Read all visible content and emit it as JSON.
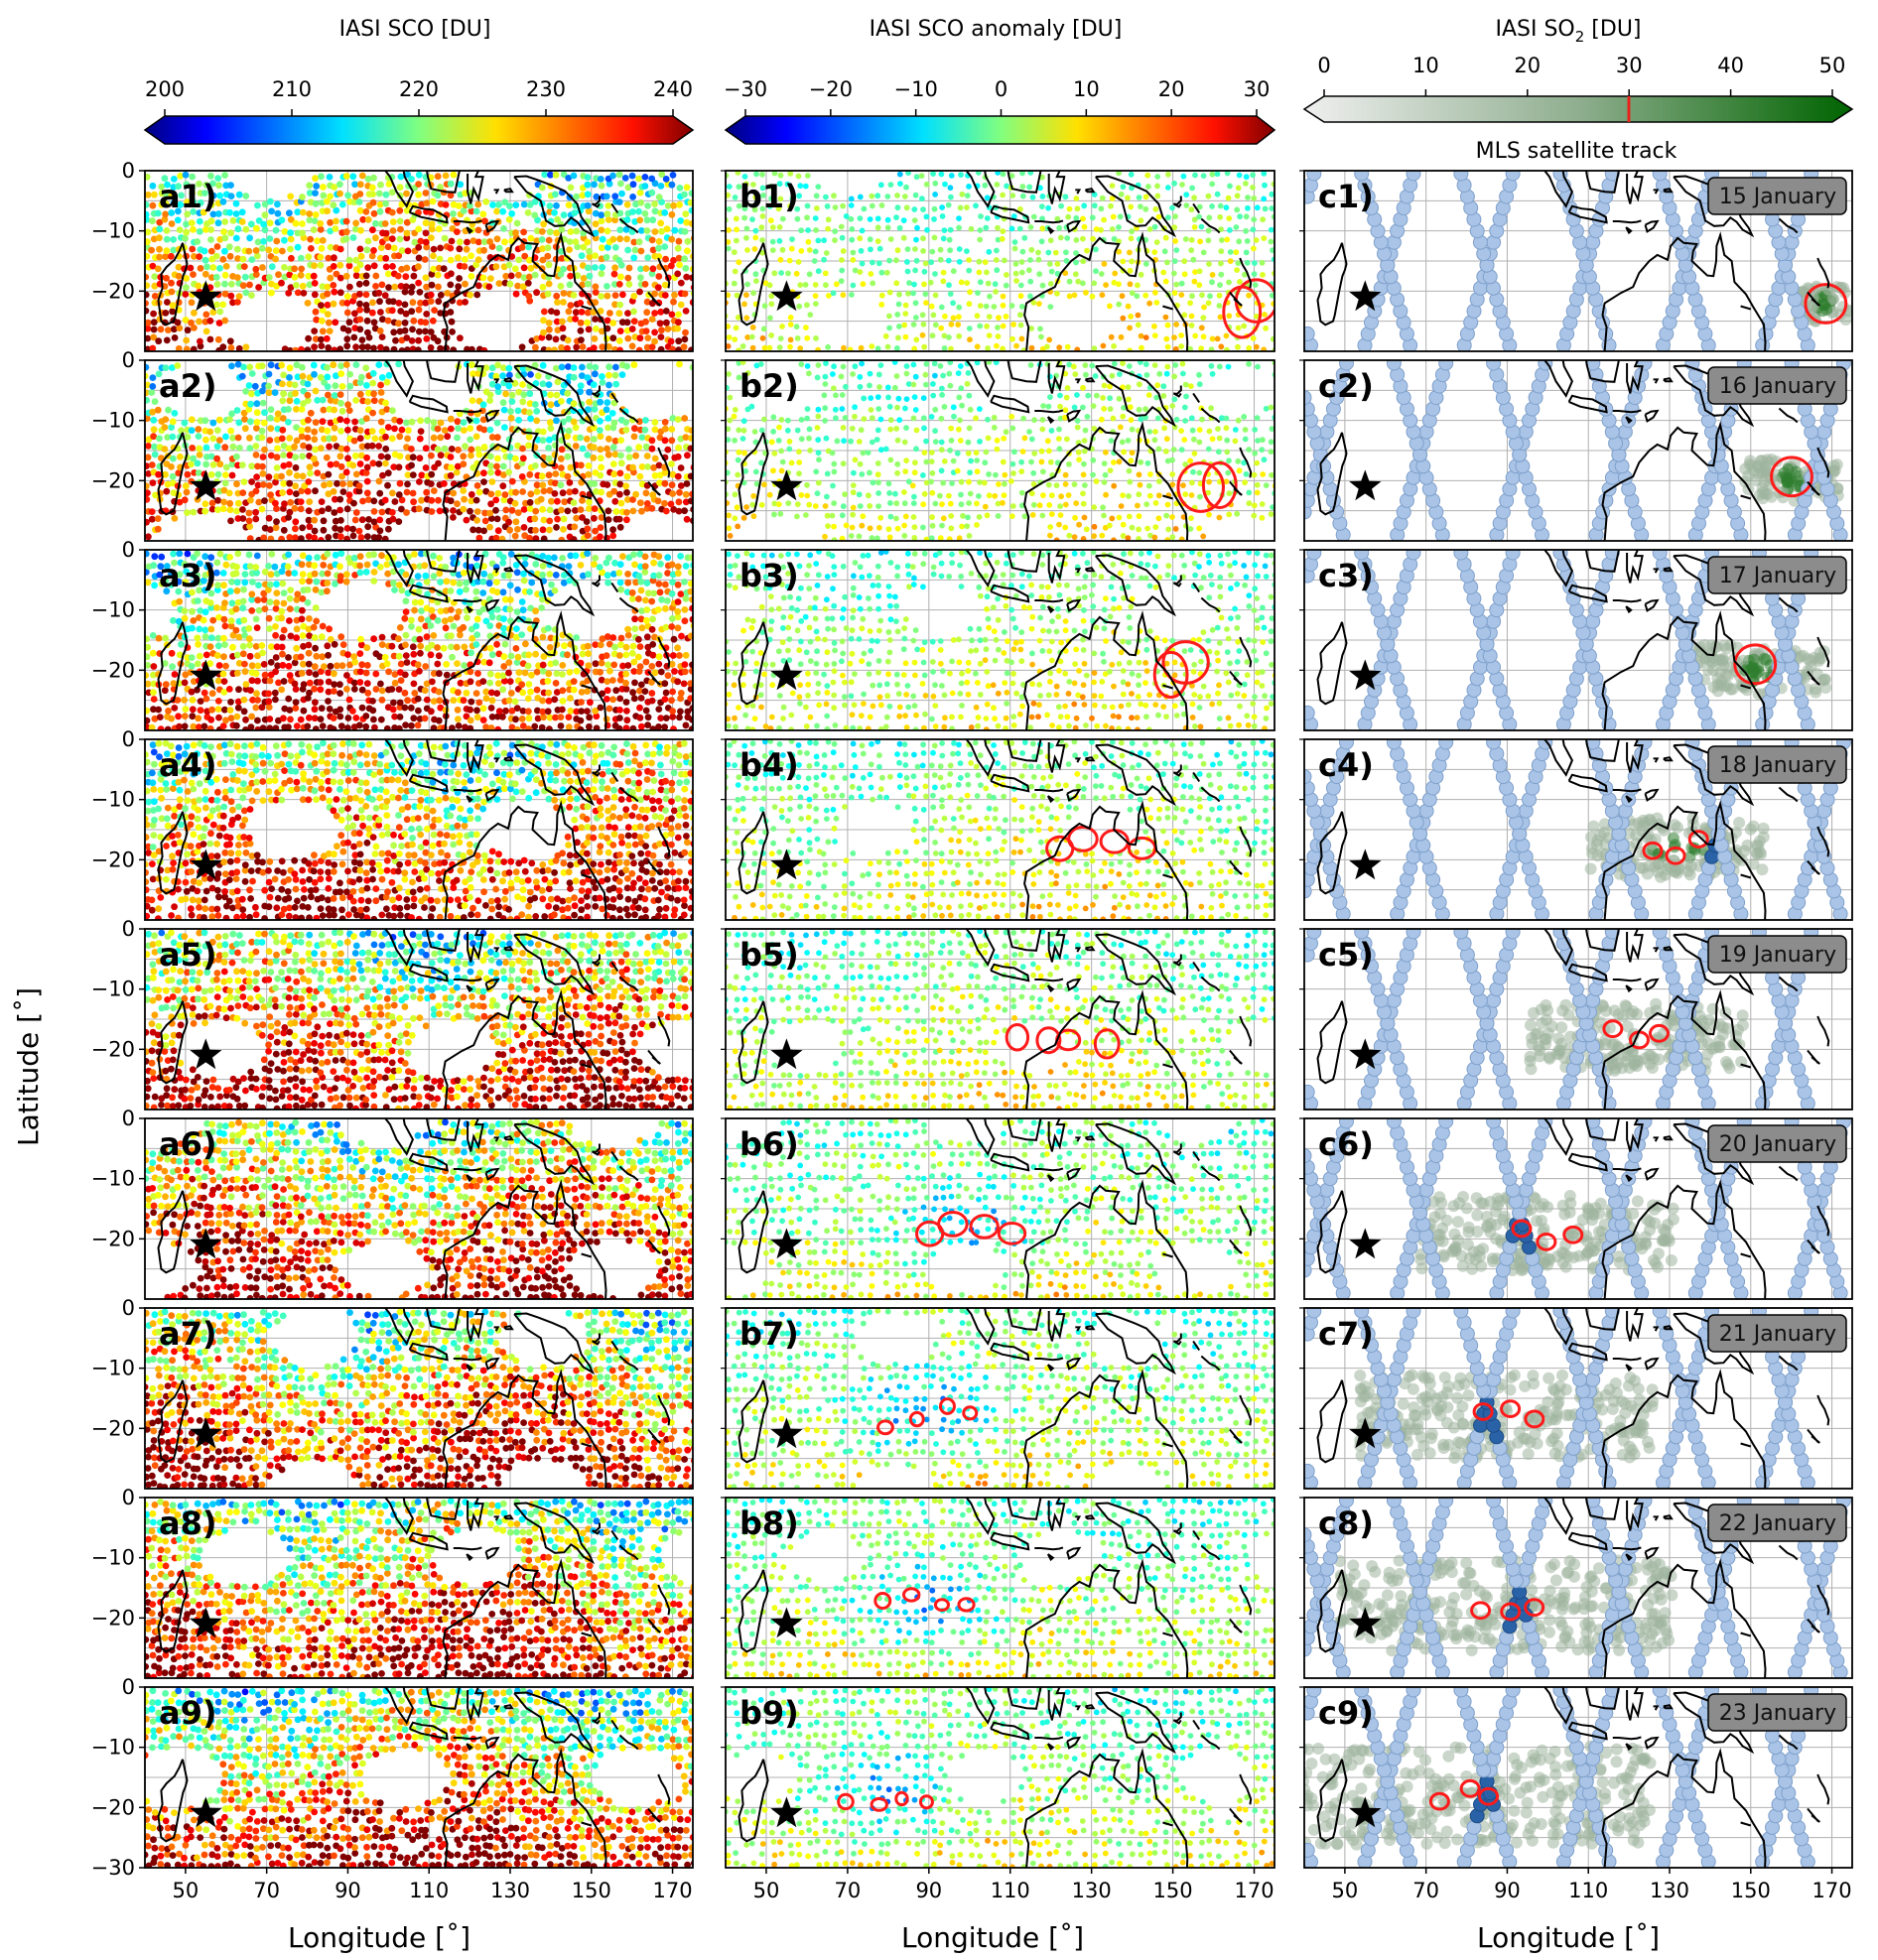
{
  "chart_data": {
    "type": "heatmap",
    "colorbars": [
      {
        "title": "IASI SCO [DU]",
        "ticks": [
          "200",
          "210",
          "220",
          "230",
          "240"
        ],
        "range": [
          200,
          240
        ],
        "colormap": "jet",
        "extend": "both"
      },
      {
        "title": "IASI SCO anomaly [DU]",
        "ticks": [
          "−30",
          "−20",
          "−10",
          "0",
          "10",
          "20",
          "30"
        ],
        "range": [
          -30,
          30
        ],
        "colormap": "jet",
        "extend": "both"
      },
      {
        "title_main": "IASI SO",
        "title_sub": "2",
        "title_unit": " [DU]",
        "ticks": [
          "0",
          "10",
          "20",
          "30",
          "40",
          "50"
        ],
        "range": [
          0,
          50
        ],
        "colormap": "white-to-green",
        "extend": "both",
        "threshold_marker": 30
      }
    ],
    "legend_note": "MLS satellite track",
    "columns": [
      {
        "id": "a",
        "quantity": "IASI SCO"
      },
      {
        "id": "b",
        "quantity": "IASI SCO anomaly"
      },
      {
        "id": "c",
        "quantity": "IASI SO2"
      }
    ],
    "rows": [
      {
        "a": "a1)",
        "b": "b1)",
        "c": "c1)",
        "date": "15 January"
      },
      {
        "a": "a2)",
        "b": "b2)",
        "c": "c2)",
        "date": "16 January"
      },
      {
        "a": "a3)",
        "b": "b3)",
        "c": "c3)",
        "date": "17 January"
      },
      {
        "a": "a4)",
        "b": "b4)",
        "c": "c4)",
        "date": "18 January"
      },
      {
        "a": "a5)",
        "b": "b5)",
        "c": "c5)",
        "date": "19 January"
      },
      {
        "a": "a6)",
        "b": "b6)",
        "c": "c6)",
        "date": "20 January"
      },
      {
        "a": "a7)",
        "b": "b7)",
        "c": "c7)",
        "date": "21 January"
      },
      {
        "a": "a8)",
        "b": "b8)",
        "c": "c8)",
        "date": "22 January"
      },
      {
        "a": "a9)",
        "b": "b9)",
        "c": "c9)",
        "date": "23 January"
      }
    ],
    "so2_plume_center_lon": [
      168,
      160,
      152,
      132,
      122,
      100,
      90,
      90,
      80
    ],
    "so2_plume_center_lat": [
      -22,
      -20,
      -20,
      -18,
      -18,
      -19,
      -18,
      -18,
      -18
    ],
    "xlabel": "Longitude [˚]",
    "ylabel": "Latitude [˚]",
    "x_ticks": [
      "50",
      "70",
      "90",
      "110",
      "130",
      "150",
      "170"
    ],
    "y_ticks": [
      "0",
      "−10",
      "−20"
    ],
    "y_bottom_tick": "−30",
    "xlim": [
      40,
      175
    ],
    "ylim": [
      -30,
      0
    ],
    "marker": "star at Hunga Tonga longitude 55, latitude -21",
    "grid": true
  }
}
